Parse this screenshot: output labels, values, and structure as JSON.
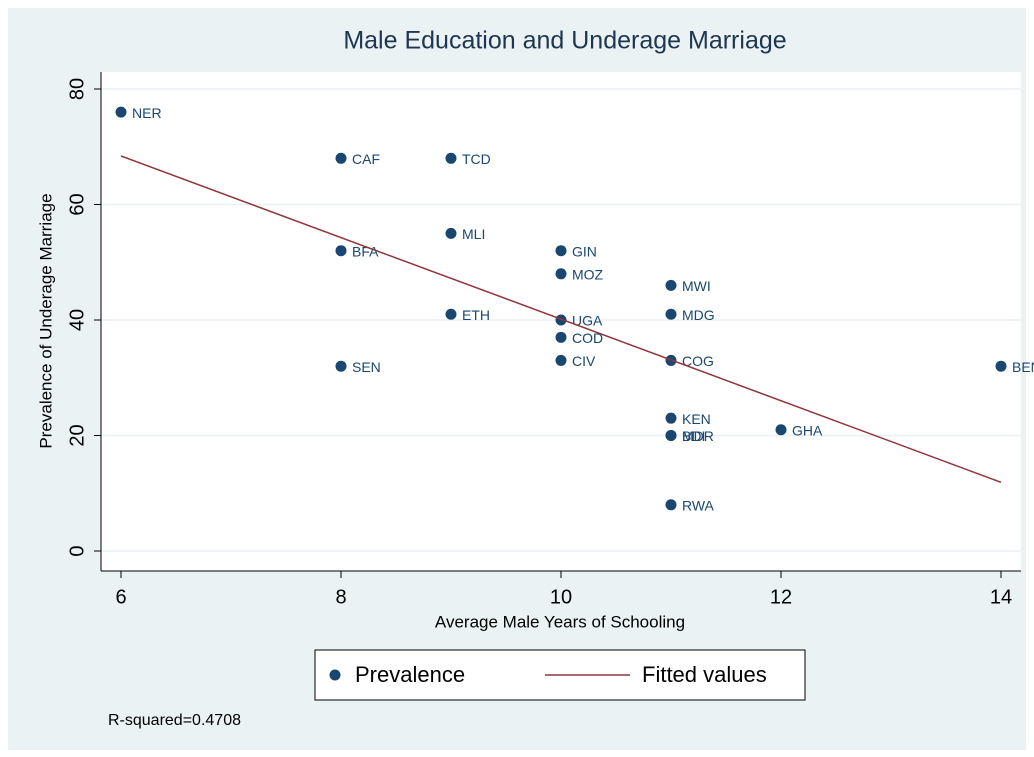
{
  "chart_data": {
    "type": "scatter",
    "title": "Male Education and Underage Marriage",
    "xlabel": "Average Male Years of Schooling",
    "ylabel": "Prevalence of Underage Marriage",
    "note": "R-squared=0.4708",
    "xlim": [
      6,
      14
    ],
    "xticks": [
      6,
      8,
      10,
      12,
      14
    ],
    "ylim": [
      0,
      80
    ],
    "yticks": [
      0,
      20,
      40,
      60,
      80
    ],
    "grid": true,
    "series": [
      {
        "name": "Prevalence",
        "color": "#1a476f",
        "type": "scatter",
        "x": [
          6,
          8,
          9,
          9,
          8,
          10,
          10,
          11,
          9,
          11,
          10,
          10,
          8,
          10,
          11,
          14,
          11,
          11,
          11,
          12,
          11
        ],
        "values": [
          76,
          68,
          68,
          55,
          52,
          52,
          48,
          46,
          41,
          41,
          40,
          37,
          32,
          33,
          33,
          32,
          23,
          20,
          20,
          21,
          8
        ],
        "point_labels": [
          "NER",
          "CAF",
          "TCD",
          "MLI",
          "BFA",
          "GIN",
          "MOZ",
          "MWI",
          "ETH",
          "MDG",
          "UGA",
          "COD",
          "SEN",
          "CIV",
          "COG",
          "BEN",
          "KEN",
          "BDI",
          "MDR",
          "GHA",
          "RWA"
        ]
      },
      {
        "name": "Fitted values",
        "color": "#90353b",
        "type": "line",
        "x": [
          6,
          14
        ],
        "values": [
          68.4,
          11.9
        ]
      }
    ]
  }
}
